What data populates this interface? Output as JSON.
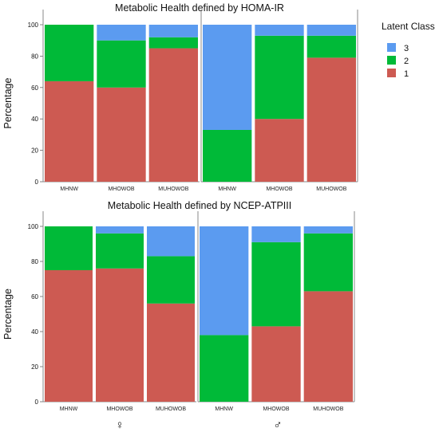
{
  "legend": {
    "title": "Latent Class",
    "items": [
      {
        "label": "3",
        "color": "#5b9bf0"
      },
      {
        "label": "2",
        "color": "#00ba38"
      },
      {
        "label": "1",
        "color": "#cd5a52"
      }
    ]
  },
  "colors": {
    "class3": "#5b9bf0",
    "class2": "#00ba38",
    "class1": "#cd5a52"
  },
  "sex_labels": [
    "♀",
    "♂"
  ],
  "chart_data": [
    {
      "type": "bar",
      "stacked": true,
      "title": "Metabolic Health defined by HOMA-IR",
      "ylabel": "Percentage",
      "ylim": [
        0,
        100
      ],
      "yticks": [
        "0",
        "20",
        "40",
        "60",
        "80",
        "100"
      ],
      "panels": [
        {
          "sex": "♀",
          "categories": [
            "MHNW",
            "MHOWOB",
            "MUHOWOB"
          ],
          "series": [
            {
              "name": "1",
              "values": [
                64,
                60,
                85
              ]
            },
            {
              "name": "2",
              "values": [
                36,
                30,
                7
              ]
            },
            {
              "name": "3",
              "values": [
                0,
                10,
                8
              ]
            }
          ]
        },
        {
          "sex": "♂",
          "categories": [
            "MHNW",
            "MHOWOB",
            "MUHOWOB"
          ],
          "series": [
            {
              "name": "1",
              "values": [
                0,
                40,
                79
              ]
            },
            {
              "name": "2",
              "values": [
                33,
                53,
                14
              ]
            },
            {
              "name": "3",
              "values": [
                67,
                7,
                7
              ]
            }
          ]
        }
      ]
    },
    {
      "type": "bar",
      "stacked": true,
      "title": "Metabolic Health defined by NCEP-ATPIII",
      "ylabel": "Percentage",
      "ylim": [
        0,
        100
      ],
      "yticks": [
        "0",
        "20",
        "40",
        "60",
        "80",
        "100"
      ],
      "panels": [
        {
          "sex": "♀",
          "categories": [
            "MHNW",
            "MHOWOB",
            "MUHOWOB"
          ],
          "series": [
            {
              "name": "1",
              "values": [
                75,
                76,
                56
              ]
            },
            {
              "name": "2",
              "values": [
                25,
                20,
                27
              ]
            },
            {
              "name": "3",
              "values": [
                0,
                4,
                17
              ]
            }
          ]
        },
        {
          "sex": "♂",
          "categories": [
            "MHNW",
            "MHOWOB",
            "MUHOWOB"
          ],
          "series": [
            {
              "name": "1",
              "values": [
                0,
                43,
                63
              ]
            },
            {
              "name": "2",
              "values": [
                38,
                48,
                33
              ]
            },
            {
              "name": "3",
              "values": [
                62,
                9,
                4
              ]
            }
          ]
        }
      ]
    }
  ]
}
